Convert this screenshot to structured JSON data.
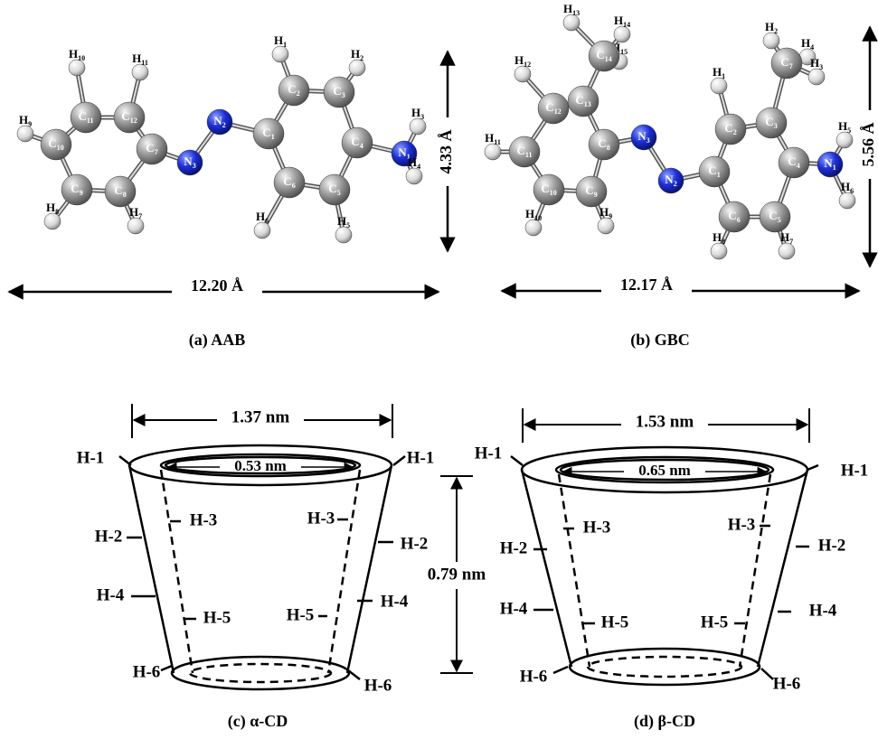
{
  "panels": [
    {
      "caption": "(a) AAB",
      "width_label": "12.20 Å",
      "height_label": "4.33 Å",
      "atoms": [
        "H10",
        "H11",
        "H1",
        "H2",
        "C11",
        "C12",
        "N2",
        "C2",
        "C3",
        "H3",
        "H9",
        "C10",
        "C7",
        "C1",
        "C4",
        "N1",
        "N3",
        "C6",
        "C5",
        "H4",
        "C9",
        "C8",
        "H6",
        "H5",
        "H8",
        "H7"
      ]
    },
    {
      "caption": "(b) GBC",
      "width_label": "12.17 Å",
      "height_label": "5.56 Å",
      "atoms": [
        "H13",
        "H14",
        "H15",
        "H12",
        "C13",
        "C12",
        "C8",
        "N3",
        "H11",
        "C11",
        "C10",
        "C9",
        "N2",
        "H10",
        "H9",
        "H2",
        "H4",
        "H3",
        "C7",
        "H1",
        "C2",
        "C3",
        "C1",
        "C4",
        "N1",
        "H5",
        "H6",
        "C6",
        "C5",
        "H8",
        "H7",
        "C14"
      ]
    },
    {
      "caption": "(c) α-CD",
      "outer_width": "1.37 nm",
      "inner_width": "0.53 nm",
      "height_label": "0.79 nm",
      "protons": [
        "H-1",
        "H-1",
        "H-3",
        "H-3",
        "H-2",
        "H-2",
        "H-4",
        "H-4",
        "H-5",
        "H-5",
        "H-6",
        "H-6"
      ]
    },
    {
      "caption": "(d) β-CD",
      "outer_width": "1.53 nm",
      "inner_width": "0.65 nm",
      "protons": [
        "H-1",
        "H-1",
        "H-3",
        "H-3",
        "H-2",
        "H-2",
        "H-4",
        "H-4",
        "H-5",
        "H-5",
        "H-6",
        "H-6"
      ]
    }
  ]
}
